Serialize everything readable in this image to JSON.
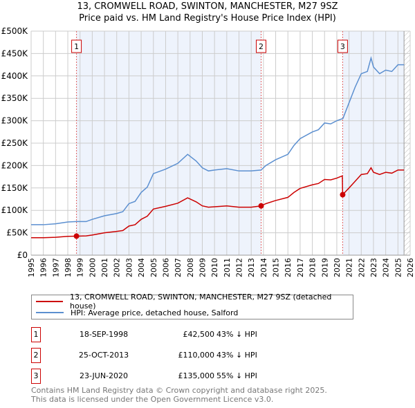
{
  "title_line1": "13, CROMWELL ROAD, SWINTON, MANCHESTER, M27 9SZ",
  "title_line2": "Price paid vs. HM Land Registry's House Price Index (HPI)",
  "legend": [
    {
      "label": "13, CROMWELL ROAD, SWINTON, MANCHESTER, M27 9SZ (detached house)",
      "color": "#cc0000"
    },
    {
      "label": "HPI: Average price, detached house, Salford",
      "color": "#5b8fd0"
    }
  ],
  "sales": [
    {
      "num": "1",
      "date": "18-SEP-1998",
      "price": "£42,500",
      "hpi": "43% ↓ HPI"
    },
    {
      "num": "2",
      "date": "25-OCT-2013",
      "price": "£110,000",
      "hpi": "43% ↓ HPI"
    },
    {
      "num": "3",
      "date": "23-JUN-2020",
      "price": "£135,000",
      "hpi": "55% ↓ HPI"
    }
  ],
  "footer": [
    "Contains HM Land Registry data © Crown copyright and database right 2025.",
    "This data is licensed under the Open Government Licence v3.0."
  ],
  "chart_data": {
    "type": "line",
    "xlim": [
      1995,
      2026
    ],
    "ylim": [
      0,
      500000
    ],
    "yticks": [
      "£0",
      "£50K",
      "£100K",
      "£150K",
      "£200K",
      "£250K",
      "£300K",
      "£350K",
      "£400K",
      "£450K",
      "£500K"
    ],
    "xticks": [
      "1995",
      "1996",
      "1997",
      "1998",
      "1999",
      "2000",
      "2001",
      "2002",
      "2003",
      "2004",
      "2005",
      "2006",
      "2007",
      "2008",
      "2009",
      "2010",
      "2011",
      "2012",
      "2013",
      "2014",
      "2015",
      "2016",
      "2017",
      "2018",
      "2019",
      "2020",
      "2021",
      "2022",
      "2023",
      "2024",
      "2025",
      "2026"
    ],
    "sale_points": [
      {
        "x": 1998.71,
        "y": 42500
      },
      {
        "x": 2013.81,
        "y": 110000
      },
      {
        "x": 2020.48,
        "y": 135000
      }
    ],
    "series": [
      {
        "name": "13, CROMWELL ROAD, SWINTON, MANCHESTER, M27 9SZ (detached house)",
        "color": "#cc0000",
        "x": [
          1995,
          1996,
          1997,
          1998,
          1998.71,
          1999.5,
          2000,
          2001,
          2002,
          2002.5,
          2003,
          2003.5,
          2004,
          2004.5,
          2005,
          2006,
          2007,
          2007.8,
          2008.5,
          2009,
          2009.5,
          2010,
          2011,
          2012,
          2013,
          2013.81,
          2014.2,
          2015,
          2016,
          2016.5,
          2017,
          2018,
          2018.5,
          2019,
          2019.5,
          2020,
          2020.45,
          2020.48,
          2021,
          2021.5,
          2022,
          2022.5,
          2022.8,
          2023,
          2023.5,
          2024,
          2024.5,
          2025,
          2025.5
        ],
        "y": [
          39,
          39,
          40,
          42,
          42.5,
          43,
          45,
          50,
          53,
          55,
          65,
          68,
          80,
          87,
          103,
          109,
          116,
          128,
          119,
          110,
          107,
          108,
          110,
          107,
          107,
          110,
          115,
          122,
          129,
          140,
          149,
          157,
          160,
          169,
          168,
          172,
          177,
          135,
          150,
          165,
          180,
          182,
          195,
          185,
          180,
          185,
          183,
          190,
          190
        ]
      },
      {
        "name": "HPI: Average price, detached house, Salford",
        "color": "#5b8fd0",
        "x": [
          1995,
          1996,
          1997,
          1998,
          1998.7,
          1999.5,
          2000,
          2001,
          2002,
          2002.5,
          2003,
          2003.5,
          2004,
          2004.5,
          2005,
          2006,
          2007,
          2007.8,
          2008.5,
          2009,
          2009.5,
          2010,
          2011,
          2012,
          2013,
          2013.8,
          2014.2,
          2015,
          2016,
          2016.5,
          2017,
          2018,
          2018.5,
          2019,
          2019.5,
          2020,
          2020.5,
          2021,
          2021.5,
          2022,
          2022.5,
          2022.8,
          2023,
          2023.5,
          2024,
          2024.5,
          2025,
          2025.5
        ],
        "y": [
          68,
          68,
          70,
          74,
          75,
          75,
          80,
          88,
          93,
          97,
          115,
          120,
          140,
          152,
          182,
          192,
          205,
          225,
          210,
          195,
          188,
          190,
          193,
          188,
          188,
          190,
          200,
          213,
          225,
          245,
          260,
          275,
          280,
          295,
          293,
          300,
          305,
          340,
          375,
          405,
          410,
          440,
          420,
          405,
          413,
          410,
          425,
          425
        ]
      }
    ],
    "y_units": "thousands GBP"
  }
}
